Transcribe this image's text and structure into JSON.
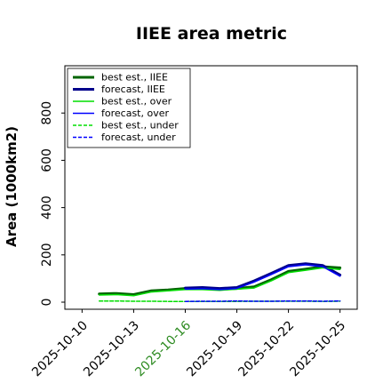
{
  "chart_data": {
    "type": "line",
    "title": "IIEE area metric",
    "ylabel": "Area (1000km2)",
    "xlabel": "",
    "ylim": [
      -30,
      1000
    ],
    "yticks": [
      0,
      200,
      400,
      600,
      800
    ],
    "xlim": [
      "2025-10-09",
      "2025-10-26"
    ],
    "xticks": [
      {
        "date": "2025-10-10",
        "label": "2025-10-10",
        "color": "#000000"
      },
      {
        "date": "2025-10-13",
        "label": "2025-10-13",
        "color": "#000000"
      },
      {
        "date": "2025-10-16",
        "label": "2025-10-16",
        "color": "#2e8b22"
      },
      {
        "date": "2025-10-19",
        "label": "2025-10-19",
        "color": "#000000"
      },
      {
        "date": "2025-10-22",
        "label": "2025-10-22",
        "color": "#000000"
      },
      {
        "date": "2025-10-25",
        "label": "2025-10-25",
        "color": "#000000"
      }
    ],
    "legend_position": "top-left",
    "grid": false,
    "series": [
      {
        "name": "best est., IIEE",
        "color": "#006400",
        "width": 3,
        "dash": "",
        "x": [
          "2025-10-11",
          "2025-10-12",
          "2025-10-13",
          "2025-10-14",
          "2025-10-15",
          "2025-10-16",
          "2025-10-17",
          "2025-10-18",
          "2025-10-19",
          "2025-10-20",
          "2025-10-21",
          "2025-10-22",
          "2025-10-23",
          "2025-10-24",
          "2025-10-25"
        ],
        "y": [
          35,
          37,
          32,
          48,
          52,
          58,
          58,
          55,
          58,
          65,
          95,
          130,
          140,
          150,
          145
        ]
      },
      {
        "name": "forecast, IIEE",
        "color": "#00008b",
        "width": 3,
        "dash": "",
        "x": [
          "2025-10-16",
          "2025-10-17",
          "2025-10-18",
          "2025-10-19",
          "2025-10-20",
          "2025-10-21",
          "2025-10-22",
          "2025-10-23",
          "2025-10-24",
          "2025-10-25"
        ],
        "y": [
          60,
          62,
          58,
          62,
          90,
          122,
          155,
          163,
          155,
          115
        ]
      },
      {
        "name": "best est., over",
        "color": "#00dd00",
        "width": 1.5,
        "dash": "",
        "x": [
          "2025-10-11",
          "2025-10-12",
          "2025-10-13",
          "2025-10-14",
          "2025-10-15",
          "2025-10-16",
          "2025-10-17",
          "2025-10-18",
          "2025-10-19",
          "2025-10-20",
          "2025-10-21",
          "2025-10-22",
          "2025-10-23",
          "2025-10-24",
          "2025-10-25"
        ],
        "y": [
          30,
          32,
          27,
          43,
          48,
          53,
          53,
          50,
          55,
          60,
          90,
          125,
          135,
          145,
          138
        ]
      },
      {
        "name": "forecast, over",
        "color": "#0000ff",
        "width": 1.5,
        "dash": "",
        "x": [
          "2025-10-16",
          "2025-10-17",
          "2025-10-18",
          "2025-10-19",
          "2025-10-20",
          "2025-10-21",
          "2025-10-22",
          "2025-10-23",
          "2025-10-24",
          "2025-10-25"
        ],
        "y": [
          55,
          57,
          53,
          58,
          85,
          117,
          150,
          158,
          150,
          110
        ]
      },
      {
        "name": "best est., under",
        "color": "#00dd00",
        "width": 1.5,
        "dash": "4,2",
        "x": [
          "2025-10-11",
          "2025-10-12",
          "2025-10-13",
          "2025-10-14",
          "2025-10-15",
          "2025-10-16",
          "2025-10-17",
          "2025-10-18",
          "2025-10-19",
          "2025-10-20",
          "2025-10-21",
          "2025-10-22",
          "2025-10-23",
          "2025-10-24",
          "2025-10-25"
        ],
        "y": [
          5,
          5,
          4,
          4,
          3,
          3,
          3,
          3,
          3,
          4,
          4,
          4,
          4,
          3,
          4
        ]
      },
      {
        "name": "forecast, under",
        "color": "#0000ff",
        "width": 1.5,
        "dash": "4,2",
        "x": [
          "2025-10-16",
          "2025-10-17",
          "2025-10-18",
          "2025-10-19",
          "2025-10-20",
          "2025-10-21",
          "2025-10-22",
          "2025-10-23",
          "2025-10-24",
          "2025-10-25"
        ],
        "y": [
          3,
          4,
          4,
          5,
          4,
          4,
          5,
          5,
          4,
          5
        ]
      }
    ]
  }
}
